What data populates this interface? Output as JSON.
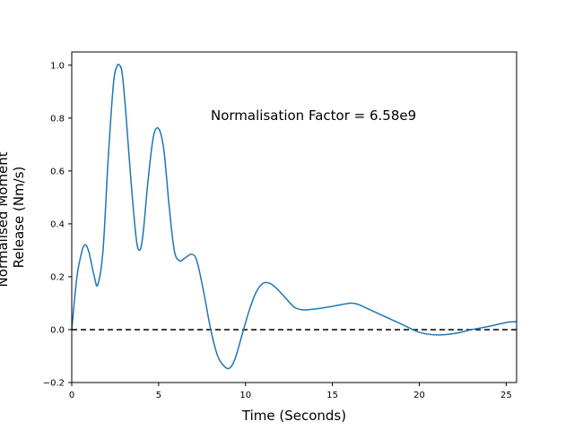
{
  "chart_data": {
    "type": "line",
    "title": "",
    "xlabel": "Time (Seconds)",
    "ylabel_lines": [
      "Normalised Moment",
      "Release (Nm/s)"
    ],
    "xlim": [
      0,
      25.6
    ],
    "ylim": [
      -0.2,
      1.05
    ],
    "xticks": [
      0,
      5,
      10,
      15,
      20,
      25
    ],
    "yticks": [
      -0.2,
      0.0,
      0.2,
      0.4,
      0.6,
      0.8,
      1.0
    ],
    "ytick_labels": [
      "−0.2",
      "0.0",
      "0.2",
      "0.4",
      "0.6",
      "0.8",
      "1.0"
    ],
    "grid": false,
    "annotation": {
      "text": "Normalisation Factor = 6.58e9",
      "x": 8.0,
      "y": 0.81
    },
    "baseline": {
      "y": 0.0,
      "style": "dashed",
      "color": "#000000"
    },
    "series": [
      {
        "color": "#1f77b4",
        "x": [
          0,
          0.3,
          0.6,
          0.8,
          1.0,
          1.3,
          1.5,
          1.8,
          2.1,
          2.4,
          2.6,
          2.75,
          2.9,
          3.1,
          3.4,
          3.7,
          3.9,
          4.1,
          4.4,
          4.7,
          5.0,
          5.3,
          5.6,
          5.9,
          6.2,
          6.5,
          6.9,
          7.2,
          7.6,
          8.0,
          8.4,
          8.8,
          9.1,
          9.4,
          9.8,
          10.2,
          10.6,
          11.0,
          11.4,
          11.8,
          12.3,
          12.8,
          13.3,
          14.0,
          15.0,
          16.0,
          16.5,
          17.0,
          18.0,
          19.0,
          20.0,
          21.0,
          22.0,
          23.0,
          24.0,
          25.0,
          25.6
        ],
        "y": [
          0.0,
          0.2,
          0.3,
          0.32,
          0.29,
          0.2,
          0.17,
          0.3,
          0.65,
          0.93,
          0.995,
          1.0,
          0.97,
          0.83,
          0.57,
          0.35,
          0.3,
          0.36,
          0.57,
          0.73,
          0.76,
          0.68,
          0.47,
          0.3,
          0.26,
          0.27,
          0.285,
          0.26,
          0.14,
          0.0,
          -0.1,
          -0.14,
          -0.145,
          -0.11,
          -0.02,
          0.07,
          0.14,
          0.175,
          0.175,
          0.155,
          0.12,
          0.085,
          0.075,
          0.078,
          0.088,
          0.1,
          0.095,
          0.08,
          0.05,
          0.02,
          -0.01,
          -0.02,
          -0.015,
          0.0,
          0.012,
          0.027,
          0.03
        ]
      }
    ]
  }
}
